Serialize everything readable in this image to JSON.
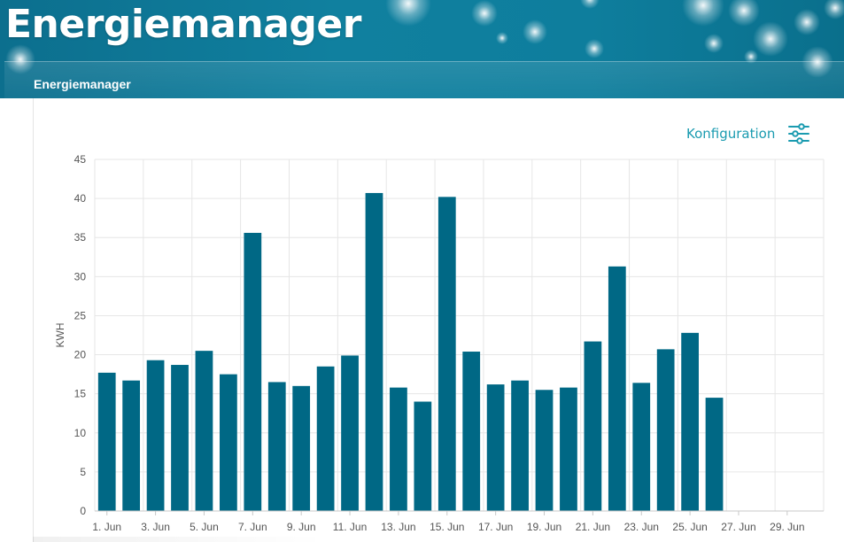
{
  "header": {
    "app_title": "Energiemanager",
    "nav_items": [
      {
        "label": "Energiemanager"
      }
    ]
  },
  "toolbar": {
    "config_label": "Konfiguration",
    "config_icon": "sliders-icon"
  },
  "colors": {
    "banner": "#0e7e9d",
    "bar": "#006885",
    "accent": "#1a9bb0"
  },
  "chart_data": {
    "type": "bar",
    "ylabel": "KWH",
    "ylim": [
      0,
      45
    ],
    "ytick_step": 5,
    "grid": true,
    "categories": [
      "1. Jun",
      "2. Jun",
      "3. Jun",
      "4. Jun",
      "5. Jun",
      "6. Jun",
      "7. Jun",
      "8. Jun",
      "9. Jun",
      "10. Jun",
      "11. Jun",
      "12. Jun",
      "13. Jun",
      "14. Jun",
      "15. Jun",
      "16. Jun",
      "17. Jun",
      "18. Jun",
      "19. Jun",
      "20. Jun",
      "21. Jun",
      "22. Jun",
      "23. Jun",
      "24. Jun",
      "25. Jun",
      "26. Jun",
      "27. Jun",
      "28. Jun",
      "29. Jun",
      "30. Jun"
    ],
    "tick_labels": [
      "1. Jun",
      "3. Jun",
      "5. Jun",
      "7. Jun",
      "9. Jun",
      "11. Jun",
      "13. Jun",
      "15. Jun",
      "17. Jun",
      "19. Jun",
      "21. Jun",
      "23. Jun",
      "25. Jun",
      "27. Jun",
      "29. Jun"
    ],
    "values": [
      17.7,
      16.7,
      19.3,
      18.7,
      20.5,
      17.5,
      35.6,
      16.5,
      16.0,
      18.5,
      19.9,
      40.7,
      15.8,
      14.0,
      40.2,
      20.4,
      16.2,
      16.7,
      15.5,
      15.8,
      21.7,
      31.3,
      16.4,
      20.7,
      22.8,
      14.5,
      null,
      null,
      null,
      null
    ]
  }
}
